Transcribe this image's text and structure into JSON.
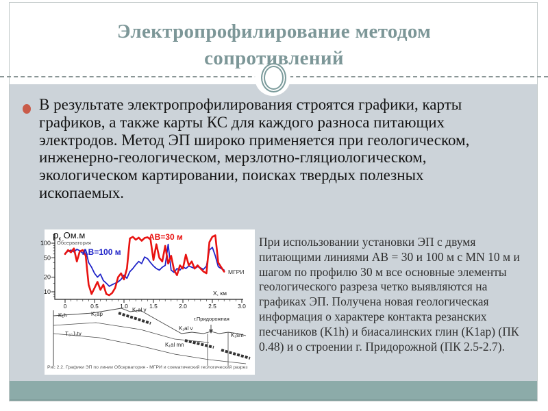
{
  "slide": {
    "title": "Электропрофилирование методом сопротивлений",
    "bullet_text": "В результате электропрофилирования строятся графики, карты графиков, а также карты КС для каждого разноса питающих электродов. Метод ЭП широко применяется при геологическом, инженерно-геологическом, мерзлотно-гляциологическом, экологическом картировании, поисках твердых полезных ископаемых.",
    "side_text": "При использовании установки ЭП с двумя питающими линиями АВ = 30 и 100 м с MN 10 м и шагом по профилю 30 м все основные элементы геологического разреза четко выявляются на графиках ЭП. Получена новая геологическая информация о характере контакта резанских песчаников (K1h) и биасалинских глин (K1ap) (ПК 0.48) и о строении г. Придорожной (ПК 2.5-2.7).",
    "colors": {
      "title": "#7d9798",
      "content_background": "#ccd3d9",
      "footer_band": "#8caba9",
      "bullet": "#c95b49",
      "series_red": "#e81210",
      "series_blue": "#2024c8"
    }
  },
  "figure": {
    "ylabel_rho": "ρ",
    "ylabel_sub": "к",
    "ylabel_unit": "Ом.м",
    "profile_start": "Обсерватория",
    "profile_end": "МГРИ",
    "xlabel": "Х, км",
    "series_label_red": "АВ=30 м",
    "series_label_blue": "АВ=100 м",
    "section_labels": {
      "k1h": "K₁h",
      "t3j1tv": "T₃-J₁tv",
      "k1ap": "K₁ap",
      "k1al_v_left": "K₁al v",
      "k1al_v_right": "K₁al v",
      "k1al_mn": "K₁al mn",
      "k1sm": "K₁sm",
      "mountain": "г.Придорожная"
    },
    "caption": "Рис 2.2. Графики ЭП по линии Обсерватория - МГРИ и схематический геологический разрез"
  },
  "chart_data": {
    "type": "line",
    "title": "Графики ЭП по линии Обсерватория - МГРИ",
    "xlabel": "Х, км",
    "ylabel": "ρк, Ом.м",
    "y_scale": "log",
    "xlim": [
      0,
      3.0
    ],
    "ylim": [
      7,
      170
    ],
    "x_ticks": [
      0,
      0.5,
      1.0,
      1.5,
      2.0,
      2.5,
      3.0
    ],
    "y_ticks": [
      10,
      20,
      50,
      100
    ],
    "y_minor_ticks": [
      8,
      9,
      15,
      30,
      40,
      60,
      70,
      80,
      90,
      150
    ],
    "legend_position": "inline-annotations",
    "grid": false,
    "x": [
      0,
      0.05,
      0.1,
      0.15,
      0.2,
      0.25,
      0.3,
      0.35,
      0.4,
      0.45,
      0.5,
      0.55,
      0.6,
      0.65,
      0.7,
      0.75,
      0.8,
      0.85,
      0.9,
      0.95,
      1,
      1.05,
      1.1,
      1.15,
      1.2,
      1.25,
      1.3,
      1.35,
      1.4,
      1.45,
      1.5,
      1.55,
      1.6,
      1.65,
      1.7,
      1.75,
      1.8,
      1.85,
      1.9,
      1.95,
      2,
      2.05,
      2.1,
      2.15,
      2.2,
      2.25,
      2.3,
      2.35,
      2.4,
      2.45,
      2.5,
      2.55,
      2.6,
      2.65,
      2.7
    ],
    "series": [
      {
        "name": "АВ=100 м",
        "color": "#2024c8",
        "y": [
          62,
          68,
          72,
          66,
          75,
          70,
          62,
          72,
          40,
          32,
          24,
          20,
          23,
          17,
          15,
          13,
          14,
          15,
          16,
          18,
          22,
          19,
          26,
          30,
          36,
          42,
          38,
          52,
          48,
          40,
          34,
          30,
          28,
          32,
          35,
          95,
          28,
          25,
          30,
          28,
          33,
          30,
          34,
          32,
          30,
          33,
          31,
          29,
          34,
          72,
          82,
          55,
          33,
          30,
          28
        ]
      },
      {
        "name": "АВ=30 м",
        "color": "#e81210",
        "y": [
          60,
          72,
          65,
          78,
          42,
          68,
          72,
          55,
          14,
          9,
          12,
          16,
          11,
          14,
          9,
          8.5,
          9.5,
          12,
          20,
          24,
          18,
          30,
          125,
          135,
          118,
          130,
          112,
          128,
          132,
          120,
          45,
          95,
          50,
          42,
          88,
          38,
          55,
          28,
          22,
          35,
          30,
          58,
          35,
          42,
          30,
          35,
          30,
          26,
          24,
          105,
          135,
          145,
          40,
          32,
          26
        ]
      }
    ]
  }
}
